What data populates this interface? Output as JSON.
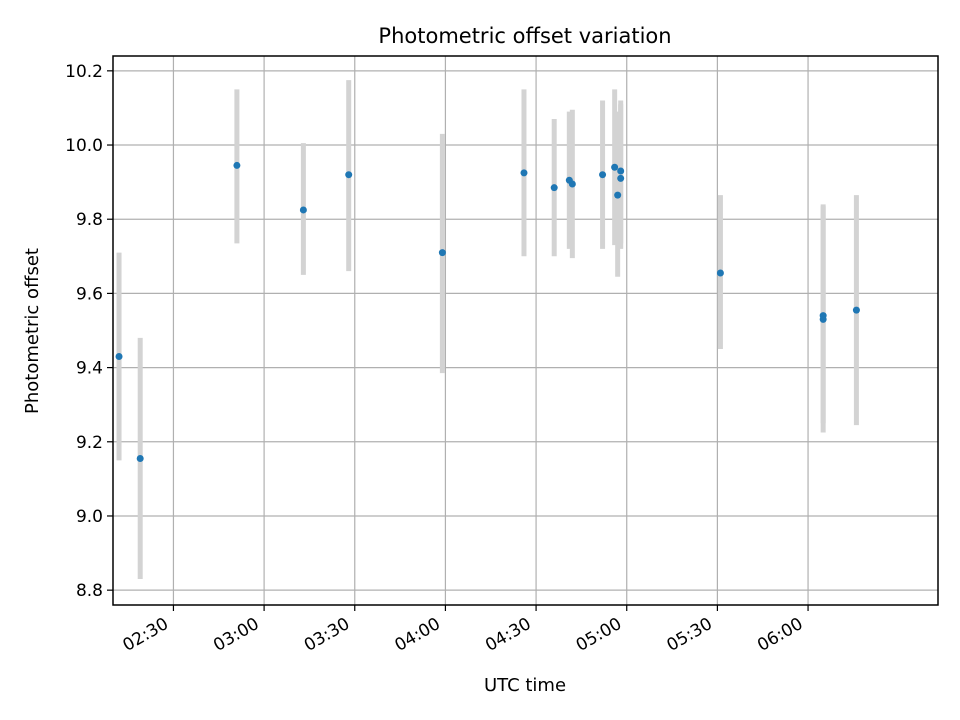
{
  "chart_data": {
    "type": "scatter",
    "title": "Photometric offset variation",
    "xlabel": "UTC time",
    "ylabel": "Photometric offset",
    "grid": true,
    "legend": "none",
    "xlim": [
      "02:10",
      "06:43"
    ],
    "ylim": [
      8.76,
      10.24
    ],
    "xticks": [
      "02:30",
      "03:00",
      "03:30",
      "04:00",
      "04:30",
      "05:00",
      "05:30",
      "06:00"
    ],
    "yticks": [
      8.8,
      9.0,
      9.2,
      9.4,
      9.6,
      9.8,
      10.0,
      10.2
    ],
    "colors": {
      "points": "#1f77b4",
      "errorbars": "#d3d3d3",
      "grid": "#b0b0b0",
      "axes": "#000000"
    },
    "series": [
      {
        "points": [
          {
            "x": "02:12",
            "y": 9.43,
            "lo": 9.15,
            "hi": 9.71
          },
          {
            "x": "02:19",
            "y": 9.155,
            "lo": 8.83,
            "hi": 9.48
          },
          {
            "x": "02:51",
            "y": 9.945,
            "lo": 9.735,
            "hi": 10.15
          },
          {
            "x": "03:13",
            "y": 9.825,
            "lo": 9.65,
            "hi": 10.005
          },
          {
            "x": "03:28",
            "y": 9.92,
            "lo": 9.66,
            "hi": 10.175
          },
          {
            "x": "03:59",
            "y": 9.71,
            "lo": 9.385,
            "hi": 10.03
          },
          {
            "x": "04:26",
            "y": 9.925,
            "lo": 9.7,
            "hi": 10.15
          },
          {
            "x": "04:36",
            "y": 9.885,
            "lo": 9.7,
            "hi": 10.07
          },
          {
            "x": "04:41",
            "y": 9.905,
            "lo": 9.72,
            "hi": 10.09
          },
          {
            "x": "04:42",
            "y": 9.895,
            "lo": 9.695,
            "hi": 10.095
          },
          {
            "x": "04:52",
            "y": 9.92,
            "lo": 9.72,
            "hi": 10.12
          },
          {
            "x": "04:56",
            "y": 9.94,
            "lo": 9.73,
            "hi": 10.15
          },
          {
            "x": "04:57",
            "y": 9.865,
            "lo": 9.645,
            "hi": 10.09
          },
          {
            "x": "04:58",
            "y": 9.91,
            "lo": 9.72,
            "hi": 10.11
          },
          {
            "x": "04:58",
            "y": 9.93,
            "lo": 9.735,
            "hi": 10.12
          },
          {
            "x": "05:31",
            "y": 9.655,
            "lo": 9.45,
            "hi": 9.865
          },
          {
            "x": "06:05",
            "y": 9.54,
            "lo": 9.25,
            "hi": 9.835
          },
          {
            "x": "06:05",
            "y": 9.53,
            "lo": 9.225,
            "hi": 9.84
          },
          {
            "x": "06:16",
            "y": 9.555,
            "lo": 9.245,
            "hi": 9.865
          }
        ]
      }
    ]
  }
}
